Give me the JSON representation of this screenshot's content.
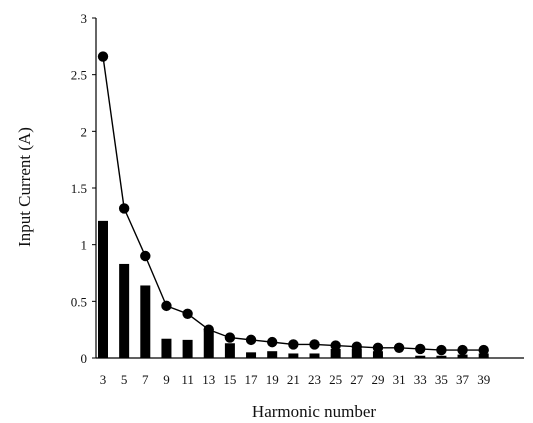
{
  "chart_data": {
    "type": "bar",
    "xlabel": "Harmonic number",
    "ylabel": "Input Current (A)",
    "ylim": [
      0,
      3
    ],
    "yticks": [
      "0",
      "0.5",
      "1",
      "1.5",
      "2",
      "2.5",
      "3"
    ],
    "grid": false,
    "categories": [
      "3",
      "5",
      "7",
      "9",
      "11",
      "13",
      "15",
      "17",
      "19",
      "21",
      "23",
      "25",
      "27",
      "29",
      "31",
      "33",
      "35",
      "37",
      "39"
    ],
    "series": [
      {
        "kind": "bar",
        "color": "#000000",
        "values": [
          1.21,
          0.83,
          0.64,
          0.17,
          0.16,
          0.24,
          0.13,
          0.05,
          0.06,
          0.04,
          0.04,
          0.08,
          0.08,
          0.06,
          0.0,
          0.02,
          0.02,
          0.03,
          0.04
        ]
      },
      {
        "kind": "line",
        "marker": "circle",
        "color": "#000000",
        "values": [
          2.66,
          1.32,
          0.9,
          0.46,
          0.39,
          0.25,
          0.18,
          0.16,
          0.14,
          0.12,
          0.12,
          0.11,
          0.1,
          0.09,
          0.09,
          0.08,
          0.07,
          0.07,
          0.07
        ]
      }
    ]
  }
}
